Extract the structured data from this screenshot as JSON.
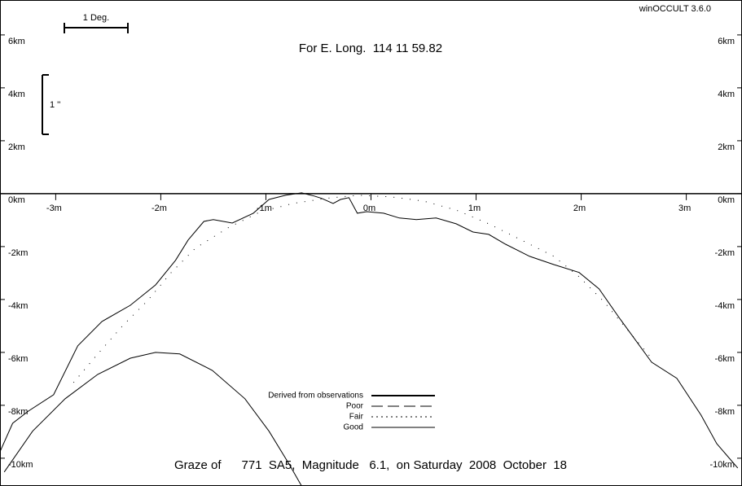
{
  "chart_data": {
    "type": "line",
    "title": "Graze of      771  SA5,  Magnitude   6.1,  on Saturday  2008  October  18",
    "subtitle": "For E. Long.  114 11 59.82",
    "software": "winOCCULT 3.6.0",
    "scale_bar_x": "1 Deg.",
    "scale_bar_y": "1 ''",
    "xlim": [
      -3.53,
      3.53
    ],
    "ylim": [
      -11.05,
      7.32
    ],
    "xticks": [
      {
        "value": -3,
        "label": "-3m"
      },
      {
        "value": -2,
        "label": "-2m"
      },
      {
        "value": -1,
        "label": "-1m"
      },
      {
        "value": 0,
        "label": "0m"
      },
      {
        "value": 1,
        "label": "1m"
      },
      {
        "value": 2,
        "label": "2m"
      },
      {
        "value": 3,
        "label": "3m"
      }
    ],
    "yticks": [
      {
        "value": 6,
        "label": "6km"
      },
      {
        "value": 4,
        "label": "4km"
      },
      {
        "value": 2,
        "label": "2km"
      },
      {
        "value": 0,
        "label": "0km"
      },
      {
        "value": -2,
        "label": "-2km"
      },
      {
        "value": -4,
        "label": "-4km"
      },
      {
        "value": -6,
        "label": "-6km"
      },
      {
        "value": -8,
        "label": "-8km"
      },
      {
        "value": -10,
        "label": "-10km"
      }
    ],
    "legend": [
      "Derived from observations",
      "Poor",
      "Fair",
      "Good"
    ],
    "series": [
      {
        "color": "#000000",
        "style": "solid",
        "x": [
          -3.53,
          -3.41,
          -3.26,
          -3.02,
          -2.79,
          -2.56,
          -2.29,
          -2.05,
          -1.86,
          -1.74,
          -1.59,
          -1.5,
          -1.32,
          -1.12,
          -0.97,
          -0.81,
          -0.66,
          -0.54,
          -0.47,
          -0.36,
          -0.29,
          -0.21,
          -0.13,
          -0.04,
          0.12,
          0.27,
          0.43,
          0.62,
          0.81,
          0.97,
          1.12,
          1.28,
          1.51,
          1.74,
          1.98,
          2.17,
          2.36,
          2.67,
          2.91,
          3.14,
          3.29,
          3.49
        ],
        "values": [
          -9.75,
          -8.68,
          -8.22,
          -7.6,
          -5.75,
          -4.83,
          -4.22,
          -3.45,
          -2.52,
          -1.75,
          -1.05,
          -0.98,
          -1.11,
          -0.74,
          -0.22,
          -0.06,
          0.03,
          -0.09,
          -0.18,
          -0.37,
          -0.22,
          -0.15,
          -0.74,
          -0.68,
          -0.74,
          -0.92,
          -0.98,
          -0.92,
          -1.14,
          -1.45,
          -1.54,
          -1.91,
          -2.37,
          -2.68,
          -2.98,
          -3.6,
          -4.68,
          -6.37,
          -6.98,
          -8.37,
          -9.45,
          -10.37
        ]
      },
      {
        "color": "#000000",
        "style": "dotted",
        "x": [
          -2.83,
          -2.6,
          -2.36,
          -2.13,
          -1.9,
          -1.67,
          -1.36,
          -1.05,
          -0.74,
          -0.43,
          -0.12,
          0.19,
          0.5,
          0.81,
          1.12,
          1.43,
          1.74,
          1.98,
          2.21,
          2.44,
          2.67
        ],
        "values": [
          -7.14,
          -6.06,
          -4.98,
          -4.06,
          -2.98,
          -2.06,
          -1.29,
          -0.68,
          -0.37,
          -0.18,
          -0.06,
          -0.12,
          -0.28,
          -0.62,
          -1.14,
          -1.75,
          -2.37,
          -3.14,
          -4.06,
          -5.14,
          -6.22
        ]
      },
      {
        "color": "#000000",
        "style": "solid",
        "x": [
          -3.49,
          -3.22,
          -2.91,
          -2.6,
          -2.29,
          -2.05,
          -1.82,
          -1.51,
          -1.2,
          -0.97,
          -0.78,
          -0.66
        ],
        "values": [
          -10.52,
          -8.98,
          -7.75,
          -6.83,
          -6.22,
          -6.0,
          -6.06,
          -6.68,
          -7.75,
          -8.98,
          -10.22,
          -11.05
        ]
      }
    ]
  }
}
